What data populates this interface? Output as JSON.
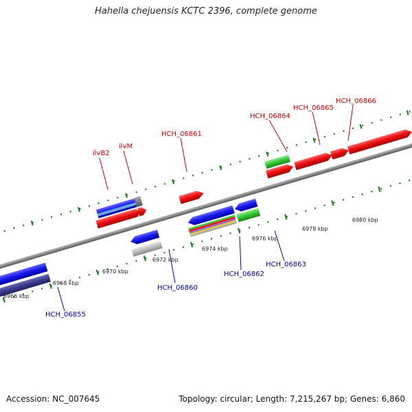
{
  "title": "Hahella chejuensis KCTC 2396, complete genome",
  "footer": {
    "accession": "Accession: NC_007645",
    "summary": "Topology: circular; Length: 7,215,267 bp; Genes: 6,860"
  },
  "scale_labels": [
    "6966 kbp",
    "6968 kbp",
    "6970 kbp",
    "6972 kbp",
    "6974 kbp",
    "6976 kbp",
    "6978 kbp",
    "6980 kbp"
  ],
  "gene_labels_forward": [
    "ilvB2",
    "ilvM",
    "HCH_06861",
    "HCH_06864",
    "HCH_06865",
    "HCH_06866"
  ],
  "gene_labels_reverse": [
    "HCH_06855",
    "HCH_06860",
    "HCH_06862",
    "HCH_06863"
  ],
  "colors": {
    "forward_label": "#cc0000",
    "reverse_label": "#0000aa",
    "genome_line": "#888888",
    "tick": "#1a7a1a",
    "forward_gene": "#ee1111",
    "reverse_gene": "#1a1aee",
    "rna_gene": "#33cc33",
    "pseudo_gene": "#aaaaaa"
  }
}
